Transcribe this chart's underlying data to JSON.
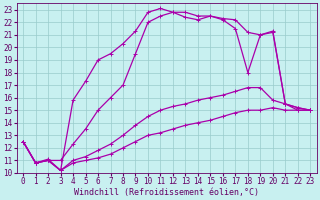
{
  "xlabel": "Windchill (Refroidissement éolien,°C)",
  "bg_color": "#c8f0f0",
  "line_color": "#aa00aa",
  "grid_color": "#99cccc",
  "xlim": [
    -0.5,
    23.5
  ],
  "ylim": [
    10,
    23.5
  ],
  "yticks": [
    10,
    11,
    12,
    13,
    14,
    15,
    16,
    17,
    18,
    19,
    20,
    21,
    22,
    23
  ],
  "xticks": [
    0,
    1,
    2,
    3,
    4,
    5,
    6,
    7,
    8,
    9,
    10,
    11,
    12,
    13,
    14,
    15,
    16,
    17,
    18,
    19,
    20,
    21,
    22,
    23
  ],
  "line1_x": [
    0,
    1,
    2,
    3,
    4,
    5,
    6,
    7,
    8,
    9,
    10,
    11,
    12,
    13,
    14,
    15,
    16,
    17,
    18,
    19,
    20,
    21,
    22,
    23
  ],
  "line1_y": [
    12.5,
    10.8,
    11.0,
    10.2,
    10.8,
    11.0,
    11.2,
    11.5,
    12.0,
    12.5,
    13.0,
    13.2,
    13.5,
    13.8,
    14.0,
    14.2,
    14.5,
    14.8,
    15.0,
    15.0,
    15.2,
    15.0,
    15.0,
    15.0
  ],
  "line2_x": [
    0,
    1,
    2,
    3,
    4,
    5,
    6,
    7,
    8,
    9,
    10,
    11,
    12,
    13,
    14,
    15,
    16,
    17,
    18,
    19,
    20,
    21,
    22,
    23
  ],
  "line2_y": [
    12.5,
    10.8,
    11.0,
    10.2,
    11.0,
    11.3,
    11.8,
    12.3,
    13.0,
    13.8,
    14.5,
    15.0,
    15.3,
    15.5,
    15.8,
    16.0,
    16.2,
    16.5,
    16.8,
    16.8,
    15.8,
    15.5,
    15.2,
    15.0
  ],
  "line3_x": [
    0,
    1,
    2,
    3,
    4,
    5,
    6,
    7,
    8,
    9,
    10,
    11,
    12,
    13,
    14,
    15,
    16,
    17,
    18,
    19,
    20,
    21,
    22,
    23
  ],
  "line3_y": [
    12.5,
    10.8,
    11.0,
    11.0,
    12.3,
    13.5,
    15.0,
    16.0,
    17.0,
    19.5,
    22.0,
    22.5,
    22.8,
    22.8,
    22.5,
    22.5,
    22.3,
    22.2,
    21.2,
    21.0,
    21.2,
    15.5,
    15.2,
    15.0
  ],
  "line4_x": [
    0,
    1,
    2,
    3,
    4,
    5,
    6,
    7,
    8,
    9,
    10,
    11,
    12,
    13,
    14,
    15,
    16,
    17,
    18,
    19,
    20,
    21,
    22,
    23
  ],
  "line4_y": [
    12.5,
    10.8,
    11.1,
    10.2,
    15.8,
    17.3,
    19.0,
    19.5,
    20.3,
    21.3,
    22.8,
    23.1,
    22.8,
    22.4,
    22.2,
    22.5,
    22.2,
    21.5,
    18.0,
    21.0,
    21.3,
    15.5,
    15.0,
    15.0
  ],
  "marker": "+",
  "markersize": 3,
  "linewidth": 0.9,
  "tick_fontsize": 5.5,
  "label_fontsize": 6.0
}
